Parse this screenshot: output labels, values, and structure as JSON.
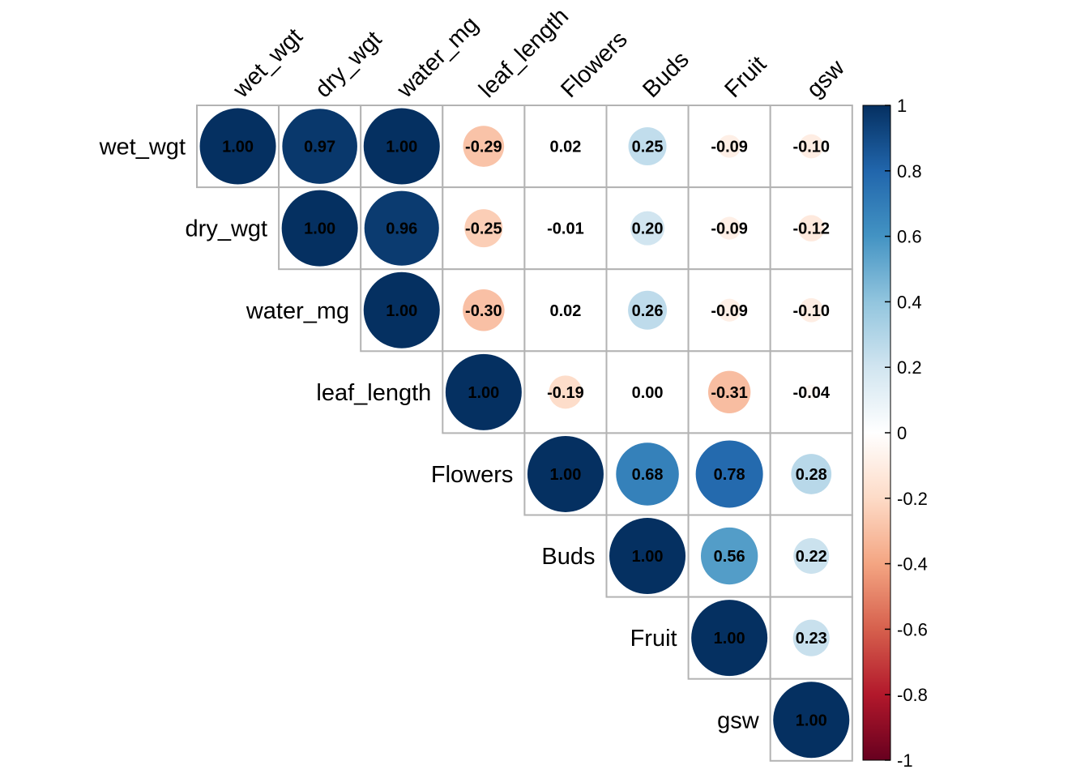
{
  "chart_data": {
    "type": "heatmap",
    "style": "correlation-circles-upper-triangle",
    "variables": [
      "wet_wgt",
      "dry_wgt",
      "water_mg",
      "leaf_length",
      "Flowers",
      "Buds",
      "Fruit",
      "gsw"
    ],
    "matrix": [
      [
        1.0,
        0.97,
        1.0,
        -0.29,
        0.02,
        0.25,
        -0.09,
        -0.1
      ],
      [
        0.97,
        1.0,
        0.96,
        -0.25,
        -0.01,
        0.2,
        -0.09,
        -0.12
      ],
      [
        1.0,
        0.96,
        1.0,
        -0.3,
        0.02,
        0.26,
        -0.09,
        -0.1
      ],
      [
        -0.29,
        -0.25,
        -0.3,
        1.0,
        -0.19,
        0.0,
        -0.31,
        -0.04
      ],
      [
        0.02,
        -0.01,
        0.02,
        -0.19,
        1.0,
        0.68,
        0.78,
        0.28
      ],
      [
        0.25,
        0.2,
        0.26,
        0.0,
        0.68,
        1.0,
        0.56,
        0.22
      ],
      [
        -0.09,
        -0.09,
        -0.09,
        -0.31,
        0.78,
        0.56,
        1.0,
        0.23
      ],
      [
        -0.1,
        -0.12,
        -0.1,
        -0.04,
        0.28,
        0.22,
        0.23,
        1.0
      ]
    ],
    "colorbar": {
      "range": [
        -1,
        1
      ],
      "ticks": [
        "1",
        "0.8",
        "0.6",
        "0.4",
        "0.2",
        "0",
        "-0.2",
        "-0.4",
        "-0.6",
        "-0.8",
        "-1"
      ],
      "palette": [
        "#67001F",
        "#B2182B",
        "#D6604D",
        "#F4A582",
        "#FDDBC7",
        "#FFFFFF",
        "#D1E5F0",
        "#92C5DE",
        "#4393C3",
        "#2166AC",
        "#053061"
      ]
    },
    "title": "",
    "xlabel": "",
    "ylabel": ""
  }
}
